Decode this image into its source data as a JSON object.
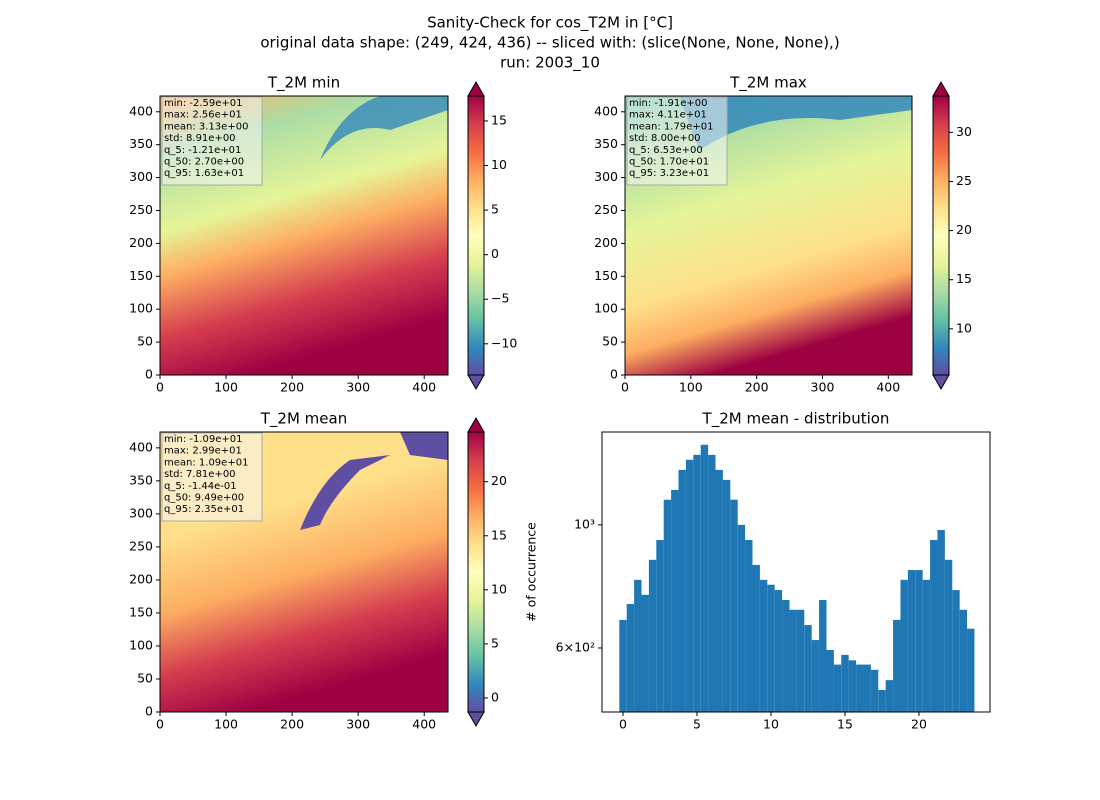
{
  "chart_data": [
    {
      "type": "heatmap",
      "suptitle": [
        "Sanity-Check for cos_T2M in [°C]",
        "original data shape: (249, 424, 436) -- sliced with: (slice(None, None, None),)",
        "run: 2003_10"
      ],
      "title": "T_2M min",
      "xlim": [
        0,
        436
      ],
      "ylim": [
        0,
        424
      ],
      "xticks": [
        0,
        100,
        200,
        300,
        400
      ],
      "yticks": [
        0,
        50,
        100,
        150,
        200,
        250,
        300,
        350,
        400
      ],
      "clim": [
        -13.5,
        17.8
      ],
      "cticks": [
        {
          "value": -10,
          "label": "−10"
        },
        {
          "value": -5,
          "label": "−5"
        },
        0,
        5,
        10,
        15
      ],
      "colormap": "Spectral_r",
      "stats": [
        "min: -2.59e+01",
        "max: 2.56e+01",
        "mean: 3.13e+00",
        "std: 8.91e+00",
        "q_5: -1.21e+01",
        "q_50: 2.70e+00",
        "q_95: 1.63e+01"
      ]
    },
    {
      "type": "heatmap",
      "title": "T_2M max",
      "xlim": [
        0,
        436
      ],
      "ylim": [
        0,
        424
      ],
      "xticks": [
        0,
        100,
        200,
        300,
        400
      ],
      "yticks": [
        0,
        50,
        100,
        150,
        200,
        250,
        300,
        350,
        400
      ],
      "clim": [
        5.3,
        33.7
      ],
      "cticks": [
        10,
        15,
        20,
        25,
        30
      ],
      "colormap": "Spectral_r",
      "stats": [
        "min: -1.91e+00",
        "max: 4.11e+01",
        "mean: 1.79e+01",
        "std: 8.00e+00",
        "q_5: 6.53e+00",
        "q_50: 1.70e+01",
        "q_95: 3.23e+01"
      ]
    },
    {
      "type": "heatmap",
      "title": "T_2M mean",
      "xlim": [
        0,
        436
      ],
      "ylim": [
        0,
        424
      ],
      "xticks": [
        0,
        100,
        200,
        300,
        400
      ],
      "yticks": [
        0,
        50,
        100,
        150,
        200,
        250,
        300,
        350,
        400
      ],
      "clim": [
        -1.3,
        24.6
      ],
      "cticks": [
        0,
        5,
        10,
        15,
        20
      ],
      "colormap": "Spectral_r",
      "stats": [
        "min: -1.09e+01",
        "max: 2.99e+01",
        "mean: 1.09e+01",
        "std: 7.81e+00",
        "q_5: -1.44e-01",
        "q_50: 9.49e+00",
        "q_95: 2.35e+01"
      ]
    },
    {
      "type": "histogram",
      "title": "T_2M mean - distribution",
      "ylabel": "# of occurrence",
      "color": "#1f77b4",
      "log_y": true,
      "xlim": [
        -1.42,
        24.8
      ],
      "xticks": [
        0,
        5,
        10,
        15,
        20
      ],
      "ylim": [
        460,
        1470
      ],
      "yticks": [
        {
          "value": 600,
          "label": "6×10²"
        },
        {
          "value": 1000,
          "label": "10³"
        }
      ],
      "bins": [
        -0.25,
        0.25,
        0.75,
        1.25,
        1.75,
        2.25,
        2.75,
        3.25,
        3.75,
        4.25,
        4.75,
        5.25,
        5.75,
        6.25,
        6.75,
        7.25,
        7.75,
        8.25,
        8.75,
        9.25,
        9.75,
        10.25,
        10.75,
        11.25,
        11.75,
        12.25,
        12.75,
        13.25,
        13.75,
        14.25,
        14.75,
        15.25,
        15.75,
        16.25,
        16.75,
        17.25,
        17.75,
        18.25,
        18.75,
        19.25,
        19.75,
        20.25,
        20.75,
        21.25,
        21.75,
        22.25,
        22.75,
        23.25,
        23.75
      ],
      "values": [
        674,
        720,
        796,
        748,
        865,
        939,
        1110,
        1156,
        1256,
        1310,
        1337,
        1394,
        1337,
        1256,
        1205,
        1110,
        1000,
        939,
        847,
        796,
        780,
        763,
        732,
        703,
        703,
        660,
        620,
        732,
        595,
        560,
        583,
        570,
        560,
        560,
        548,
        504,
        525,
        674,
        796,
        829,
        829,
        796,
        939,
        979,
        865,
        763,
        703,
        650
      ]
    }
  ]
}
